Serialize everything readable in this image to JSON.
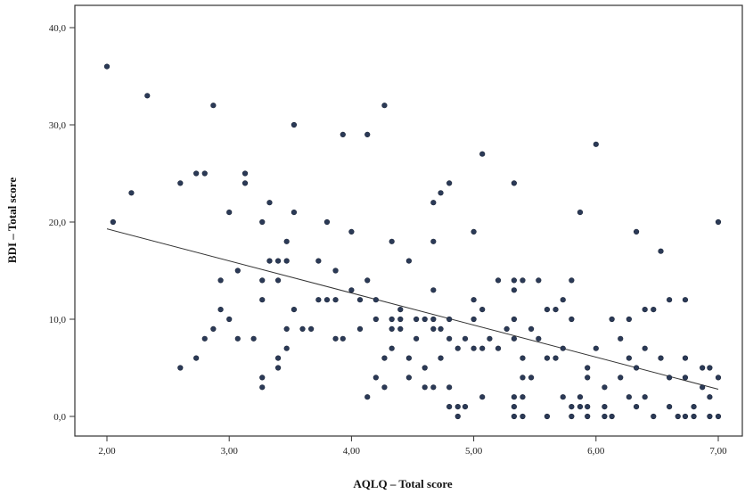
{
  "chart_data": {
    "type": "scatter",
    "title": "",
    "xlabel": "AQLQ – Total score",
    "ylabel": "BDI – Total score",
    "xlim": [
      1.8,
      7.2
    ],
    "ylim": [
      -2,
      42
    ],
    "x_ticks": [
      {
        "value": 2,
        "label": "2,00"
      },
      {
        "value": 3,
        "label": "3,00"
      },
      {
        "value": 4,
        "label": "4,00"
      },
      {
        "value": 5,
        "label": "5,00"
      },
      {
        "value": 6,
        "label": "6,00"
      },
      {
        "value": 7,
        "label": "7,00"
      }
    ],
    "y_ticks": [
      {
        "value": 0,
        "label": "0,0"
      },
      {
        "value": 10,
        "label": "10,0"
      },
      {
        "value": 20,
        "label": "20,0"
      },
      {
        "value": 30,
        "label": "30,0"
      },
      {
        "value": 40,
        "label": "40,0"
      }
    ],
    "grid": false,
    "point_color": "#2b3a57",
    "regression_line": {
      "x": [
        2.0,
        7.0
      ],
      "y": [
        19.3,
        2.8
      ]
    },
    "points": [
      [
        2.0,
        36
      ],
      [
        2.05,
        20
      ],
      [
        2.2,
        23
      ],
      [
        2.33,
        33
      ],
      [
        2.6,
        24
      ],
      [
        2.6,
        5
      ],
      [
        2.73,
        25
      ],
      [
        2.8,
        25
      ],
      [
        2.73,
        6
      ],
      [
        2.8,
        8
      ],
      [
        2.87,
        9
      ],
      [
        2.87,
        32
      ],
      [
        2.93,
        14
      ],
      [
        2.93,
        11
      ],
      [
        3.0,
        10
      ],
      [
        3.0,
        21
      ],
      [
        3.07,
        15
      ],
      [
        3.07,
        8
      ],
      [
        3.13,
        25
      ],
      [
        3.13,
        24
      ],
      [
        3.2,
        8
      ],
      [
        3.27,
        14
      ],
      [
        3.27,
        20
      ],
      [
        3.27,
        12
      ],
      [
        3.27,
        4
      ],
      [
        3.27,
        3
      ],
      [
        3.33,
        22
      ],
      [
        3.33,
        16
      ],
      [
        3.4,
        14
      ],
      [
        3.4,
        16
      ],
      [
        3.4,
        6
      ],
      [
        3.4,
        5
      ],
      [
        3.47,
        18
      ],
      [
        3.47,
        16
      ],
      [
        3.47,
        9
      ],
      [
        3.47,
        7
      ],
      [
        3.53,
        30
      ],
      [
        3.53,
        21
      ],
      [
        3.53,
        11
      ],
      [
        3.6,
        9
      ],
      [
        3.67,
        9
      ],
      [
        3.73,
        16
      ],
      [
        3.73,
        12
      ],
      [
        3.8,
        20
      ],
      [
        3.8,
        12
      ],
      [
        3.87,
        15
      ],
      [
        3.87,
        12
      ],
      [
        3.87,
        8
      ],
      [
        3.93,
        29
      ],
      [
        3.93,
        8
      ],
      [
        4.0,
        19
      ],
      [
        4.0,
        13
      ],
      [
        4.07,
        12
      ],
      [
        4.07,
        9
      ],
      [
        4.13,
        29
      ],
      [
        4.13,
        14
      ],
      [
        4.13,
        2
      ],
      [
        4.2,
        12
      ],
      [
        4.2,
        10
      ],
      [
        4.2,
        4
      ],
      [
        4.27,
        32
      ],
      [
        4.27,
        6
      ],
      [
        4.27,
        3
      ],
      [
        4.33,
        18
      ],
      [
        4.33,
        10
      ],
      [
        4.33,
        9
      ],
      [
        4.33,
        7
      ],
      [
        4.4,
        11
      ],
      [
        4.4,
        10
      ],
      [
        4.4,
        9
      ],
      [
        4.47,
        16
      ],
      [
        4.47,
        6
      ],
      [
        4.47,
        4
      ],
      [
        4.53,
        10
      ],
      [
        4.53,
        8
      ],
      [
        4.6,
        10
      ],
      [
        4.6,
        5
      ],
      [
        4.6,
        3
      ],
      [
        4.67,
        22
      ],
      [
        4.67,
        18
      ],
      [
        4.67,
        13
      ],
      [
        4.67,
        10
      ],
      [
        4.67,
        9
      ],
      [
        4.67,
        3
      ],
      [
        4.73,
        23
      ],
      [
        4.73,
        9
      ],
      [
        4.73,
        6
      ],
      [
        4.8,
        24
      ],
      [
        4.8,
        10
      ],
      [
        4.8,
        8
      ],
      [
        4.8,
        3
      ],
      [
        4.8,
        1
      ],
      [
        4.87,
        7
      ],
      [
        4.87,
        1
      ],
      [
        4.87,
        0
      ],
      [
        4.93,
        8
      ],
      [
        4.93,
        1
      ],
      [
        5.0,
        19
      ],
      [
        5.0,
        12
      ],
      [
        5.0,
        10
      ],
      [
        5.0,
        7
      ],
      [
        5.07,
        27
      ],
      [
        5.07,
        11
      ],
      [
        5.07,
        7
      ],
      [
        5.07,
        2
      ],
      [
        5.13,
        8
      ],
      [
        5.2,
        14
      ],
      [
        5.2,
        7
      ],
      [
        5.27,
        9
      ],
      [
        5.33,
        24
      ],
      [
        5.33,
        14
      ],
      [
        5.33,
        13
      ],
      [
        5.33,
        10
      ],
      [
        5.33,
        8
      ],
      [
        5.33,
        2
      ],
      [
        5.33,
        1
      ],
      [
        5.33,
        0
      ],
      [
        5.4,
        14
      ],
      [
        5.4,
        6
      ],
      [
        5.4,
        4
      ],
      [
        5.4,
        2
      ],
      [
        5.4,
        0
      ],
      [
        5.47,
        9
      ],
      [
        5.47,
        4
      ],
      [
        5.53,
        14
      ],
      [
        5.53,
        8
      ],
      [
        5.6,
        11
      ],
      [
        5.6,
        6
      ],
      [
        5.6,
        0
      ],
      [
        5.67,
        11
      ],
      [
        5.67,
        6
      ],
      [
        5.73,
        12
      ],
      [
        5.73,
        7
      ],
      [
        5.73,
        2
      ],
      [
        5.8,
        14
      ],
      [
        5.8,
        10
      ],
      [
        5.8,
        1
      ],
      [
        5.8,
        0
      ],
      [
        5.87,
        21
      ],
      [
        5.87,
        2
      ],
      [
        5.87,
        1
      ],
      [
        5.93,
        5
      ],
      [
        5.93,
        4
      ],
      [
        5.93,
        1
      ],
      [
        5.93,
        0
      ],
      [
        6.0,
        28
      ],
      [
        6.0,
        7
      ],
      [
        6.07,
        3
      ],
      [
        6.07,
        1
      ],
      [
        6.07,
        0
      ],
      [
        6.13,
        10
      ],
      [
        6.13,
        0
      ],
      [
        6.2,
        8
      ],
      [
        6.2,
        4
      ],
      [
        6.27,
        10
      ],
      [
        6.27,
        6
      ],
      [
        6.27,
        2
      ],
      [
        6.33,
        19
      ],
      [
        6.33,
        5
      ],
      [
        6.33,
        1
      ],
      [
        6.4,
        7
      ],
      [
        6.4,
        2
      ],
      [
        6.4,
        11
      ],
      [
        6.47,
        11
      ],
      [
        6.47,
        0
      ],
      [
        6.53,
        17
      ],
      [
        6.53,
        6
      ],
      [
        6.6,
        12
      ],
      [
        6.6,
        4
      ],
      [
        6.6,
        1
      ],
      [
        6.67,
        0
      ],
      [
        6.73,
        12
      ],
      [
        6.73,
        6
      ],
      [
        6.73,
        4
      ],
      [
        6.73,
        0
      ],
      [
        6.8,
        1
      ],
      [
        6.8,
        0
      ],
      [
        6.87,
        5
      ],
      [
        6.87,
        3
      ],
      [
        6.93,
        5
      ],
      [
        6.93,
        2
      ],
      [
        6.93,
        0
      ],
      [
        7.0,
        20
      ],
      [
        7.0,
        4
      ],
      [
        7.0,
        0
      ]
    ]
  }
}
